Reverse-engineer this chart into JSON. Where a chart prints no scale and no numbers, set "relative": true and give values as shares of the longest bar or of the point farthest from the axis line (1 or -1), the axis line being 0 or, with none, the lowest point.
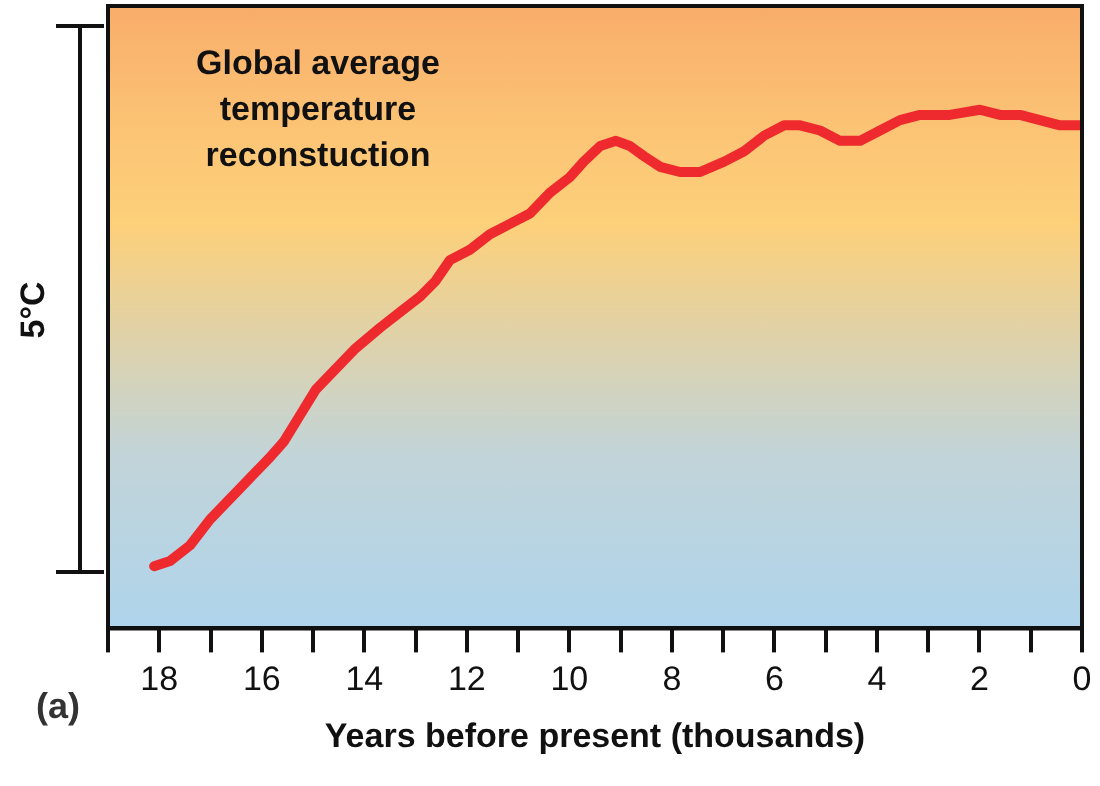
{
  "chart_data": {
    "type": "line",
    "title": "Global average temperature reconstuction",
    "xlabel": "Years before present (thousands)",
    "ylabel": "5°C",
    "annotations": [
      "(a)"
    ],
    "relative": true,
    "grid": false,
    "legend": false,
    "marker": "none",
    "line_style": "solid",
    "xlim": [
      19,
      0
    ],
    "xticks": [
      {
        "value": 19,
        "label": null
      },
      18,
      {
        "value": 17,
        "label": null
      },
      16,
      {
        "value": 15,
        "label": null
      },
      14,
      {
        "value": 13,
        "label": null
      },
      12,
      {
        "value": 11,
        "label": null
      },
      10,
      {
        "value": 9,
        "label": null
      },
      8,
      {
        "value": 7,
        "label": null
      },
      6,
      {
        "value": 5,
        "label": null
      },
      4,
      {
        "value": 3,
        "label": null
      },
      2,
      {
        "value": 1,
        "label": null
      },
      0
    ],
    "series": [
      {
        "color": "#ee2a2e",
        "x": [
          18.1,
          17.79,
          17.4,
          17.01,
          16.62,
          16.23,
          15.84,
          15.57,
          15.26,
          14.95,
          14.56,
          14.17,
          13.69,
          13.3,
          12.91,
          12.61,
          12.33,
          11.94,
          11.55,
          11.16,
          10.77,
          10.38,
          9.99,
          9.72,
          9.4,
          9.09,
          8.82,
          8.54,
          8.23,
          7.84,
          7.45,
          6.98,
          6.59,
          6.2,
          5.81,
          5.5,
          5.11,
          4.72,
          4.33,
          3.94,
          3.55,
          3.16,
          2.58,
          1.99,
          1.6,
          1.21,
          0.82,
          0.43,
          0
        ],
        "values": [
          0.12,
          0.13,
          0.16,
          0.21,
          0.25,
          0.29,
          0.33,
          0.36,
          0.41,
          0.46,
          0.5,
          0.54,
          0.58,
          0.61,
          0.64,
          0.67,
          0.71,
          0.73,
          0.76,
          0.78,
          0.8,
          0.84,
          0.87,
          0.9,
          0.93,
          0.94,
          0.93,
          0.91,
          0.89,
          0.88,
          0.88,
          0.9,
          0.92,
          0.95,
          0.97,
          0.97,
          0.96,
          0.94,
          0.94,
          0.96,
          0.98,
          0.99,
          0.99,
          1,
          0.99,
          0.99,
          0.98,
          0.97,
          0.97
        ]
      }
    ]
  }
}
